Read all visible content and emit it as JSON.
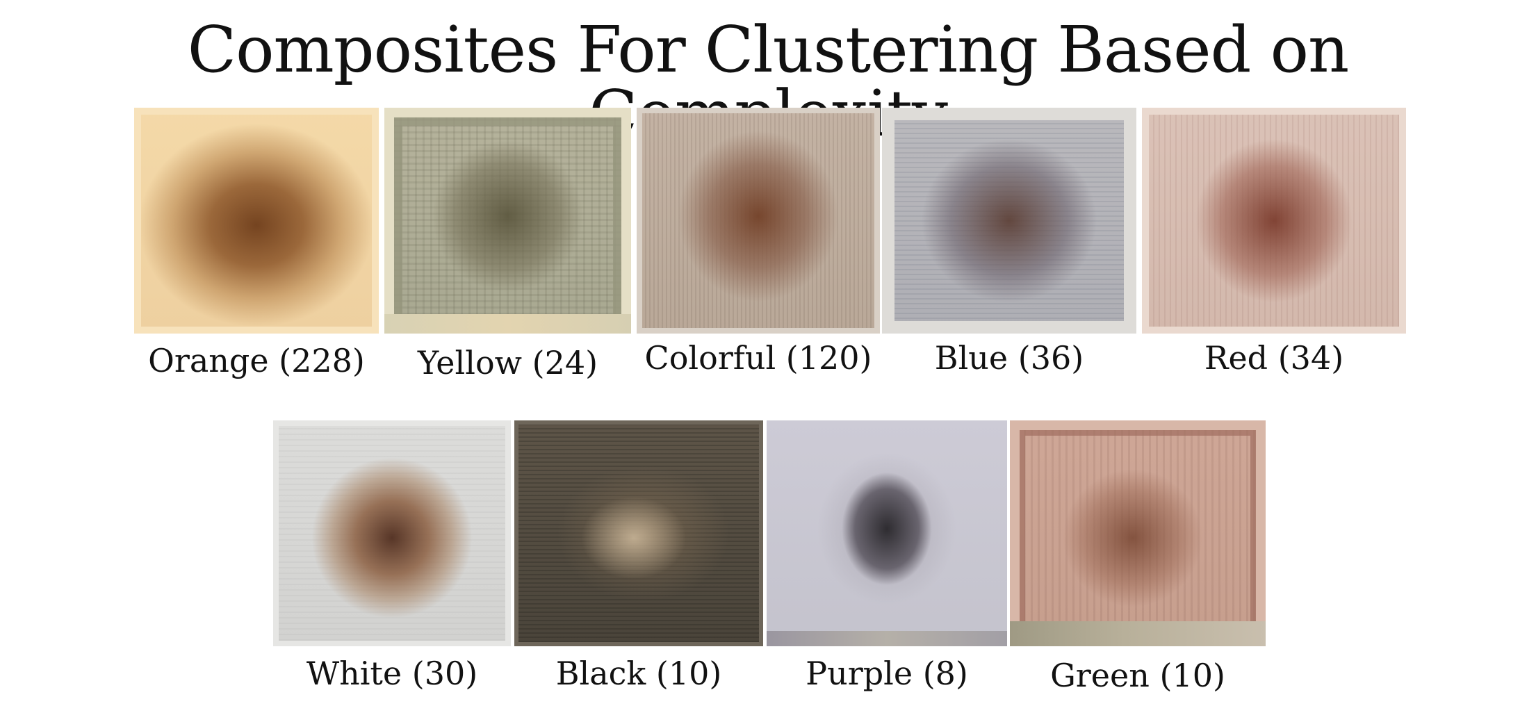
{
  "title": "Composites For Clustering Based on Complexity",
  "clusters": [
    {
      "name": "Orange (228)"
    },
    {
      "name": "Yellow (24)"
    },
    {
      "name": "Colorful (120)"
    },
    {
      "name": "Blue (36)"
    },
    {
      "name": "Red (34)"
    },
    {
      "name": "White (30)"
    },
    {
      "name": "Black (10)"
    },
    {
      "name": "Purple (8)"
    },
    {
      "name": "Green (10)"
    }
  ]
}
